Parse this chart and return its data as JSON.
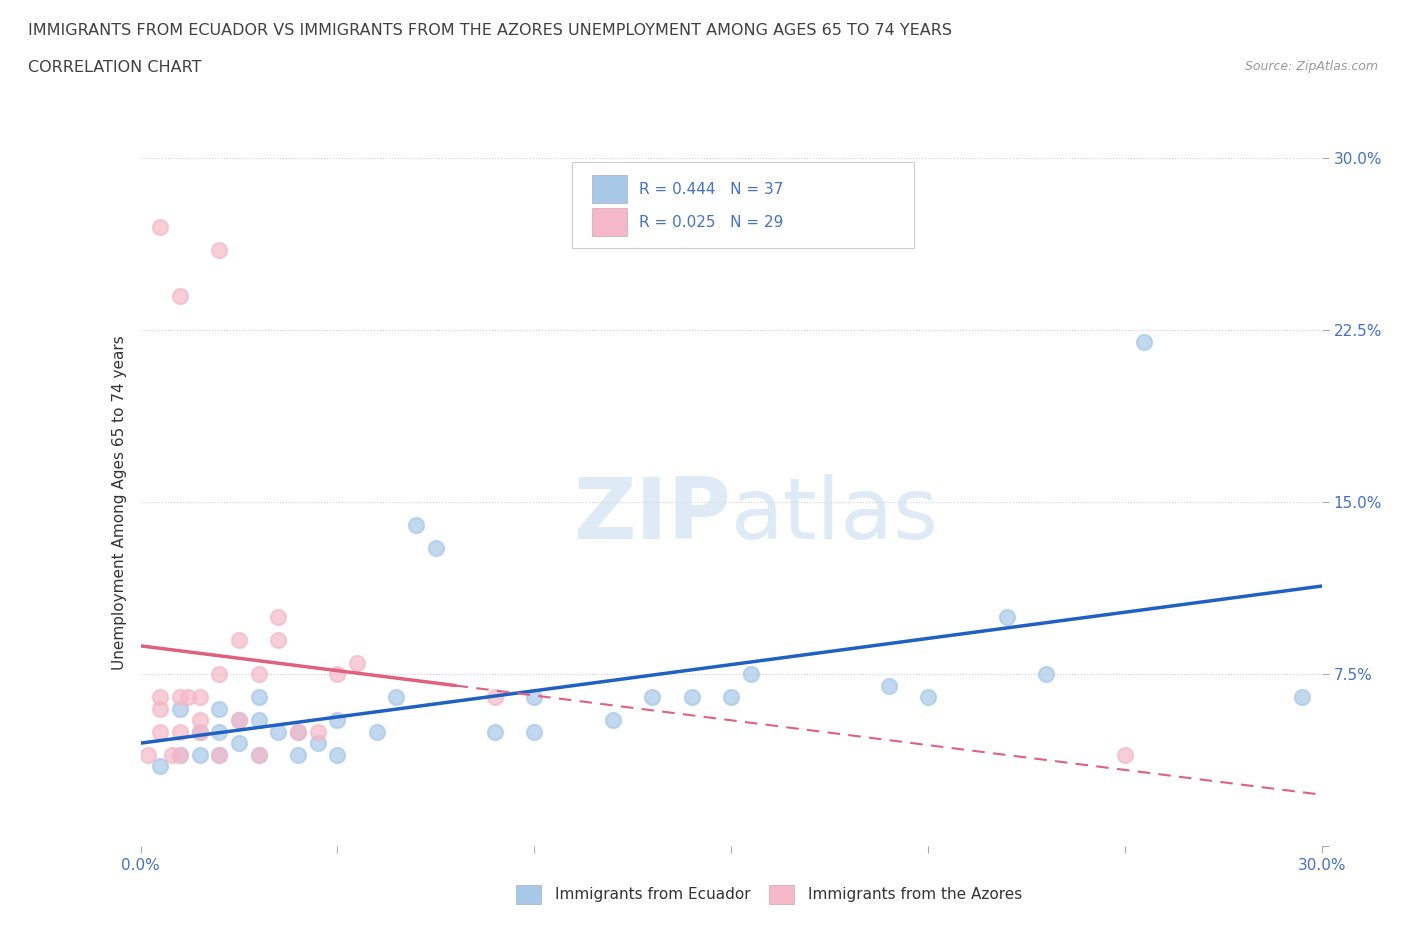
{
  "title_line1": "IMMIGRANTS FROM ECUADOR VS IMMIGRANTS FROM THE AZORES UNEMPLOYMENT AMONG AGES 65 TO 74 YEARS",
  "title_line2": "CORRELATION CHART",
  "source": "Source: ZipAtlas.com",
  "ylabel": "Unemployment Among Ages 65 to 74 years",
  "xlim": [
    0.0,
    0.3
  ],
  "ylim": [
    0.0,
    0.3
  ],
  "xticks": [
    0.0,
    0.05,
    0.1,
    0.15,
    0.2,
    0.25,
    0.3
  ],
  "yticks": [
    0.0,
    0.075,
    0.15,
    0.225,
    0.3
  ],
  "xticklabels": [
    "0.0%",
    "",
    "",
    "",
    "",
    "",
    "30.0%"
  ],
  "yticklabels": [
    "",
    "7.5%",
    "15.0%",
    "22.5%",
    "30.0%"
  ],
  "R_ecuador": 0.444,
  "N_ecuador": 37,
  "R_azores": 0.025,
  "N_azores": 29,
  "ecuador_color": "#a8c8e8",
  "azores_color": "#f4b8c8",
  "ecuador_line_color": "#2060c0",
  "azores_line_color": "#e06080",
  "watermark_text": "ZIPatlas",
  "ecuador_points": [
    [
      0.005,
      0.035
    ],
    [
      0.01,
      0.04
    ],
    [
      0.01,
      0.06
    ],
    [
      0.015,
      0.04
    ],
    [
      0.015,
      0.05
    ],
    [
      0.02,
      0.04
    ],
    [
      0.02,
      0.05
    ],
    [
      0.02,
      0.06
    ],
    [
      0.025,
      0.045
    ],
    [
      0.025,
      0.055
    ],
    [
      0.03,
      0.04
    ],
    [
      0.03,
      0.055
    ],
    [
      0.03,
      0.065
    ],
    [
      0.035,
      0.05
    ],
    [
      0.04,
      0.04
    ],
    [
      0.04,
      0.05
    ],
    [
      0.045,
      0.045
    ],
    [
      0.05,
      0.04
    ],
    [
      0.05,
      0.055
    ],
    [
      0.06,
      0.05
    ],
    [
      0.065,
      0.065
    ],
    [
      0.07,
      0.14
    ],
    [
      0.075,
      0.13
    ],
    [
      0.09,
      0.05
    ],
    [
      0.1,
      0.05
    ],
    [
      0.1,
      0.065
    ],
    [
      0.12,
      0.055
    ],
    [
      0.13,
      0.065
    ],
    [
      0.14,
      0.065
    ],
    [
      0.15,
      0.065
    ],
    [
      0.155,
      0.075
    ],
    [
      0.19,
      0.07
    ],
    [
      0.2,
      0.065
    ],
    [
      0.22,
      0.1
    ],
    [
      0.23,
      0.075
    ],
    [
      0.255,
      0.22
    ],
    [
      0.295,
      0.065
    ]
  ],
  "azores_points": [
    [
      0.002,
      0.04
    ],
    [
      0.005,
      0.05
    ],
    [
      0.005,
      0.06
    ],
    [
      0.005,
      0.065
    ],
    [
      0.008,
      0.04
    ],
    [
      0.01,
      0.04
    ],
    [
      0.01,
      0.05
    ],
    [
      0.01,
      0.065
    ],
    [
      0.012,
      0.065
    ],
    [
      0.015,
      0.05
    ],
    [
      0.015,
      0.055
    ],
    [
      0.015,
      0.065
    ],
    [
      0.02,
      0.04
    ],
    [
      0.02,
      0.075
    ],
    [
      0.02,
      0.26
    ],
    [
      0.025,
      0.055
    ],
    [
      0.025,
      0.09
    ],
    [
      0.03,
      0.04
    ],
    [
      0.03,
      0.075
    ],
    [
      0.035,
      0.09
    ],
    [
      0.035,
      0.1
    ],
    [
      0.04,
      0.05
    ],
    [
      0.045,
      0.05
    ],
    [
      0.005,
      0.27
    ],
    [
      0.01,
      0.24
    ],
    [
      0.05,
      0.075
    ],
    [
      0.055,
      0.08
    ],
    [
      0.09,
      0.065
    ],
    [
      0.25,
      0.04
    ]
  ],
  "background_color": "#ffffff",
  "grid_color": "#d0d0d0",
  "title_color": "#404040",
  "tick_label_color": "#4472c4",
  "legend_value_color": "#4472c4"
}
